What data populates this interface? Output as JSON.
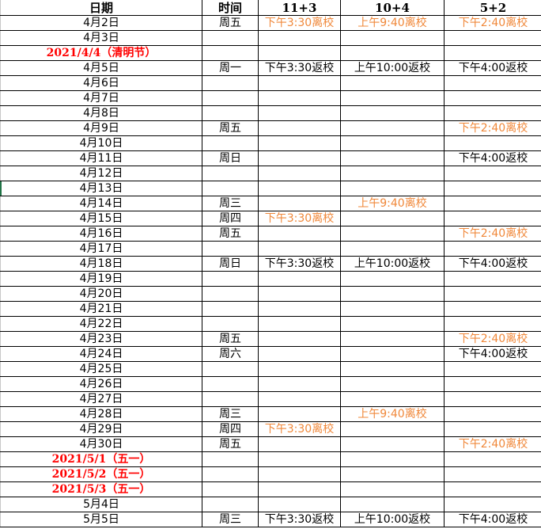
{
  "colors": {
    "orange": "#f0883a",
    "red": "#ff0000",
    "text": "#000000"
  },
  "header": [
    "日期",
    "时间",
    "11+3",
    "10+4",
    "5+2"
  ],
  "rows": [
    {
      "date": "4月2日",
      "day": "周五",
      "c": [
        {
          "t": "下午3:30离校",
          "o": true
        },
        {
          "t": "上午9:40离校",
          "o": true
        },
        {
          "t": "下午2:40离校",
          "o": true
        }
      ]
    },
    {
      "date": "4月3日",
      "day": "",
      "c": []
    },
    {
      "date": "2021/4/4（清明节）",
      "holiday": true,
      "day": "",
      "c": []
    },
    {
      "date": "4月5日",
      "day": "周一",
      "c": [
        {
          "t": "下午3:30返校"
        },
        {
          "t": "上午10:00返校"
        },
        {
          "t": "下午4:00返校"
        }
      ]
    },
    {
      "date": "4月6日",
      "day": "",
      "c": []
    },
    {
      "date": "4月7日",
      "day": "",
      "c": []
    },
    {
      "date": "4月8日",
      "day": "",
      "c": []
    },
    {
      "date": "4月9日",
      "day": "周五",
      "c": [
        {
          "t": ""
        },
        {
          "t": ""
        },
        {
          "t": "下午2:40离校",
          "o": true
        }
      ]
    },
    {
      "date": "4月10日",
      "day": "",
      "c": []
    },
    {
      "date": "4月11日",
      "day": "周日",
      "c": [
        {
          "t": ""
        },
        {
          "t": ""
        },
        {
          "t": "下午4:00返校"
        }
      ]
    },
    {
      "date": "4月12日",
      "day": "",
      "c": []
    },
    {
      "date": "4月13日",
      "day": "",
      "c": []
    },
    {
      "date": "4月14日",
      "day": "周三",
      "c": [
        {
          "t": ""
        },
        {
          "t": "上午9:40离校",
          "o": true
        },
        {
          "t": ""
        }
      ]
    },
    {
      "date": "4月15日",
      "day": "周四",
      "c": [
        {
          "t": "下午3:30离校",
          "o": true
        },
        {
          "t": ""
        },
        {
          "t": ""
        }
      ]
    },
    {
      "date": "4月16日",
      "day": "周五",
      "c": [
        {
          "t": ""
        },
        {
          "t": ""
        },
        {
          "t": "下午2:40离校",
          "o": true
        }
      ]
    },
    {
      "date": "4月17日",
      "day": "",
      "c": []
    },
    {
      "date": "4月18日",
      "day": "周日",
      "c": [
        {
          "t": "下午3:30返校"
        },
        {
          "t": "上午10:00返校"
        },
        {
          "t": "下午4:00返校"
        }
      ]
    },
    {
      "date": "4月19日",
      "day": "",
      "c": []
    },
    {
      "date": "4月20日",
      "day": "",
      "c": []
    },
    {
      "date": "4月21日",
      "day": "",
      "c": []
    },
    {
      "date": "4月22日",
      "day": "",
      "c": []
    },
    {
      "date": "4月23日",
      "day": "周五",
      "c": [
        {
          "t": ""
        },
        {
          "t": ""
        },
        {
          "t": "下午2:40离校",
          "o": true
        }
      ]
    },
    {
      "date": "4月24日",
      "day": "周六",
      "c": [
        {
          "t": ""
        },
        {
          "t": ""
        },
        {
          "t": "下午4:00返校"
        }
      ]
    },
    {
      "date": "4月25日",
      "day": "",
      "c": []
    },
    {
      "date": "4月26日",
      "day": "",
      "c": []
    },
    {
      "date": "4月27日",
      "day": "",
      "c": []
    },
    {
      "date": "4月28日",
      "day": "周三",
      "c": [
        {
          "t": ""
        },
        {
          "t": "上午9:40离校",
          "o": true
        },
        {
          "t": ""
        }
      ]
    },
    {
      "date": "4月29日",
      "day": "周四",
      "c": [
        {
          "t": "下午3:30离校",
          "o": true
        },
        {
          "t": ""
        },
        {
          "t": ""
        }
      ]
    },
    {
      "date": "4月30日",
      "day": "周五",
      "c": [
        {
          "t": ""
        },
        {
          "t": ""
        },
        {
          "t": "下午2:40离校",
          "o": true
        }
      ]
    },
    {
      "date": "2021/5/1（五一）",
      "holiday": true,
      "day": "",
      "c": []
    },
    {
      "date": "2021/5/2（五一）",
      "holiday": true,
      "day": "",
      "c": []
    },
    {
      "date": "2021/5/3（五一）",
      "holiday": true,
      "day": "",
      "c": []
    },
    {
      "date": "5月4日",
      "day": "",
      "c": []
    },
    {
      "date": "5月5日",
      "day": "周三",
      "c": [
        {
          "t": "下午3:30返校"
        },
        {
          "t": "上午10:00返校"
        },
        {
          "t": "下午4:00返校"
        }
      ]
    }
  ]
}
